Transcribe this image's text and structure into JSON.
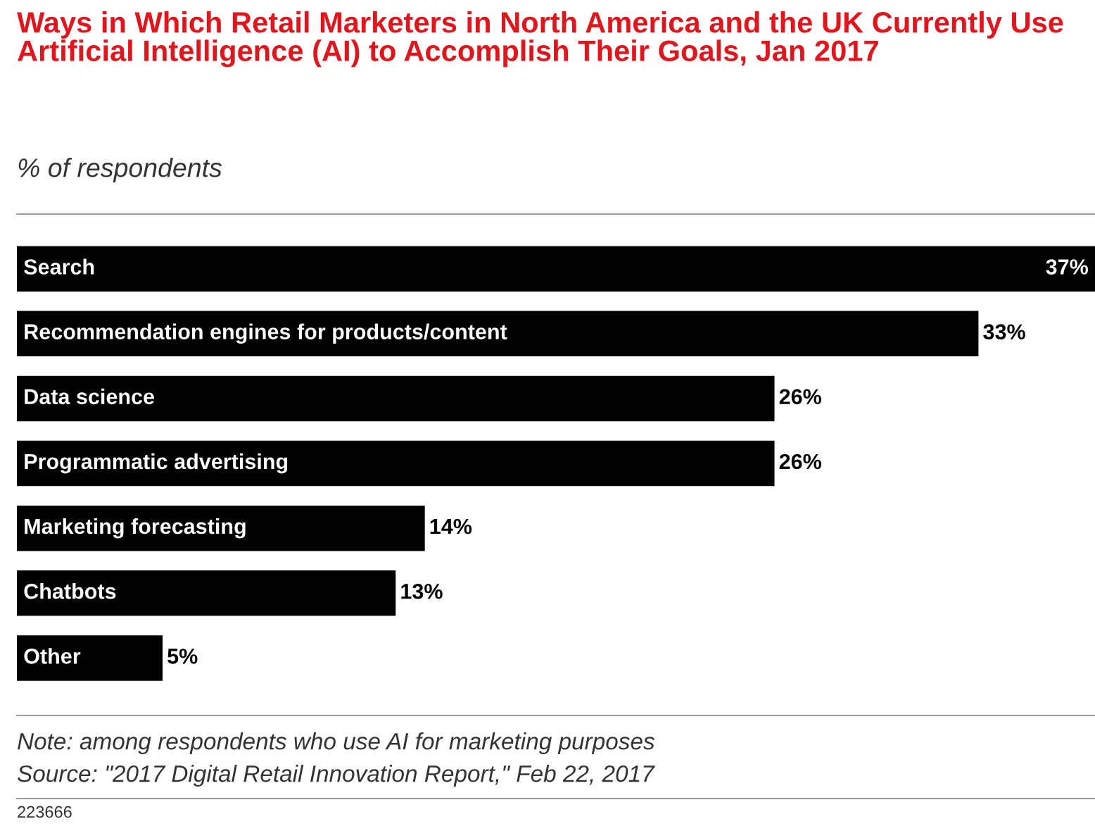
{
  "chart_data": {
    "type": "bar",
    "orientation": "horizontal",
    "title": "Ways in Which Retail Marketers in North America and the UK Currently Use Artificial Intelligence (AI) to Accomplish Their Goals, Jan 2017",
    "subtitle": "% of respondents",
    "categories": [
      "Search",
      "Recommendation engines for products/content",
      "Data science",
      "Programmatic advertising",
      "Marketing forecasting",
      "Chatbots",
      "Other"
    ],
    "values": [
      37,
      33,
      26,
      26,
      14,
      13,
      5
    ],
    "value_labels": [
      "37%",
      "33%",
      "26%",
      "26%",
      "14%",
      "13%",
      "5%"
    ],
    "color": "#000000",
    "annotations": [
      "Note: among respondents who use AI for marketing purposes",
      "Source: \"2017 Digital Retail Innovation Report,\" Feb 22, 2017",
      "223666"
    ]
  }
}
